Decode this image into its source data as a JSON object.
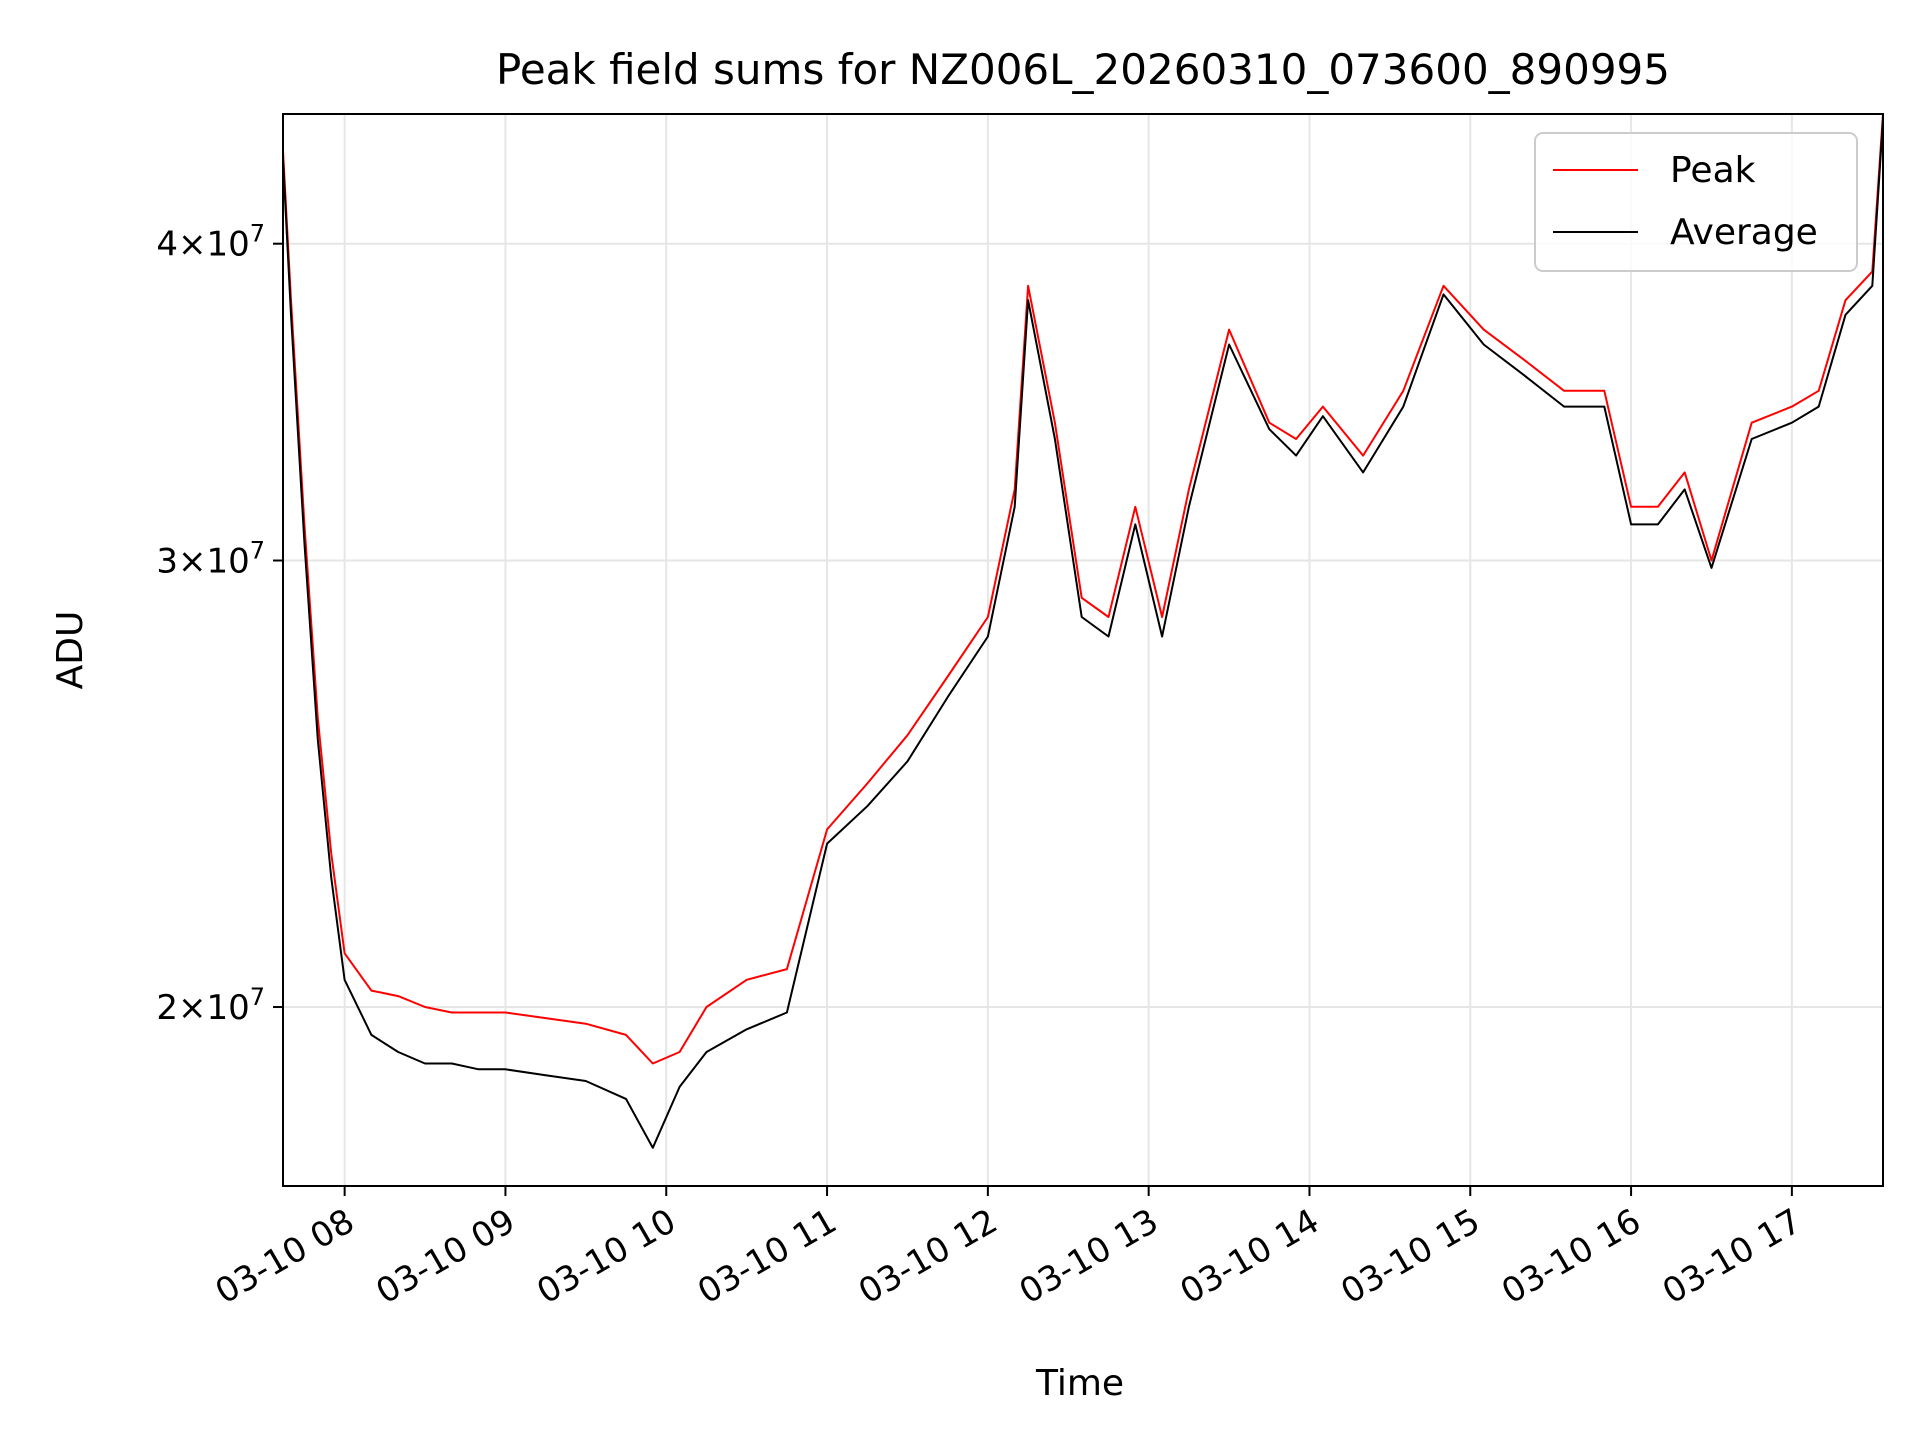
{
  "chart_data": {
    "type": "line",
    "title": "Peak field sums for NZ006L_20260310_073600_890995",
    "xlabel": "Time",
    "ylabel": "ADU",
    "y_scale": "log",
    "xlim": [
      "2026-03-10 07:37",
      "2026-03-10 17:34"
    ],
    "ylim": [
      17000000,
      45000000
    ],
    "x_ticks": [
      "03-10 08",
      "03-10 09",
      "03-10 10",
      "03-10 11",
      "03-10 12",
      "03-10 13",
      "03-10 14",
      "03-10 15",
      "03-10 16",
      "03-10 17"
    ],
    "y_ticks": [
      {
        "value": 20000000,
        "mantissa": "2",
        "exponent": "7"
      },
      {
        "value": 30000000,
        "mantissa": "3",
        "exponent": "7"
      },
      {
        "value": 40000000,
        "mantissa": "4",
        "exponent": "7"
      }
    ],
    "tick_times_text": "×10",
    "grid": true,
    "legend_position": "top-right",
    "series": [
      {
        "name": "Peak",
        "color": "#ff0000",
        "x": [
          "2026-03-10 07:37",
          "2026-03-10 07:40",
          "2026-03-10 07:45",
          "2026-03-10 07:50",
          "2026-03-10 07:55",
          "2026-03-10 08:00",
          "2026-03-10 08:10",
          "2026-03-10 08:20",
          "2026-03-10 08:30",
          "2026-03-10 08:40",
          "2026-03-10 08:50",
          "2026-03-10 09:00",
          "2026-03-10 09:15",
          "2026-03-10 09:30",
          "2026-03-10 09:45",
          "2026-03-10 09:55",
          "2026-03-10 10:05",
          "2026-03-10 10:15",
          "2026-03-10 10:30",
          "2026-03-10 10:45",
          "2026-03-10 11:00",
          "2026-03-10 11:15",
          "2026-03-10 11:30",
          "2026-03-10 11:45",
          "2026-03-10 12:00",
          "2026-03-10 12:10",
          "2026-03-10 12:15",
          "2026-03-10 12:25",
          "2026-03-10 12:35",
          "2026-03-10 12:45",
          "2026-03-10 12:55",
          "2026-03-10 13:05",
          "2026-03-10 13:15",
          "2026-03-10 13:30",
          "2026-03-10 13:45",
          "2026-03-10 13:55",
          "2026-03-10 14:05",
          "2026-03-10 14:20",
          "2026-03-10 14:35",
          "2026-03-10 14:50",
          "2026-03-10 15:05",
          "2026-03-10 15:20",
          "2026-03-10 15:35",
          "2026-03-10 15:50",
          "2026-03-10 16:00",
          "2026-03-10 16:10",
          "2026-03-10 16:20",
          "2026-03-10 16:30",
          "2026-03-10 16:45",
          "2026-03-10 17:00",
          "2026-03-10 17:10",
          "2026-03-10 17:20",
          "2026-03-10 17:30",
          "2026-03-10 17:34"
        ],
        "y": [
          43500000,
          38000000,
          31000000,
          26000000,
          23000000,
          21000000,
          20300000,
          20200000,
          20000000,
          19900000,
          19900000,
          19900000,
          19800000,
          19700000,
          19500000,
          19000000,
          19200000,
          20000000,
          20500000,
          20700000,
          23500000,
          24500000,
          25600000,
          27000000,
          28500000,
          32000000,
          38500000,
          34000000,
          29000000,
          28500000,
          31500000,
          28500000,
          32000000,
          37000000,
          34000000,
          33500000,
          34500000,
          33000000,
          35000000,
          38500000,
          37000000,
          36000000,
          35000000,
          35000000,
          31500000,
          31500000,
          32500000,
          30000000,
          34000000,
          34500000,
          35000000,
          38000000,
          39000000,
          45000000
        ]
      },
      {
        "name": "Average",
        "color": "#000000",
        "x": [
          "2026-03-10 07:37",
          "2026-03-10 07:40",
          "2026-03-10 07:45",
          "2026-03-10 07:50",
          "2026-03-10 07:55",
          "2026-03-10 08:00",
          "2026-03-10 08:10",
          "2026-03-10 08:20",
          "2026-03-10 08:30",
          "2026-03-10 08:40",
          "2026-03-10 08:50",
          "2026-03-10 09:00",
          "2026-03-10 09:15",
          "2026-03-10 09:30",
          "2026-03-10 09:45",
          "2026-03-10 09:55",
          "2026-03-10 10:05",
          "2026-03-10 10:15",
          "2026-03-10 10:30",
          "2026-03-10 10:45",
          "2026-03-10 11:00",
          "2026-03-10 11:15",
          "2026-03-10 11:30",
          "2026-03-10 11:45",
          "2026-03-10 12:00",
          "2026-03-10 12:10",
          "2026-03-10 12:15",
          "2026-03-10 12:25",
          "2026-03-10 12:35",
          "2026-03-10 12:45",
          "2026-03-10 12:55",
          "2026-03-10 13:05",
          "2026-03-10 13:15",
          "2026-03-10 13:30",
          "2026-03-10 13:45",
          "2026-03-10 13:55",
          "2026-03-10 14:05",
          "2026-03-10 14:20",
          "2026-03-10 14:35",
          "2026-03-10 14:50",
          "2026-03-10 15:05",
          "2026-03-10 15:20",
          "2026-03-10 15:35",
          "2026-03-10 15:50",
          "2026-03-10 16:00",
          "2026-03-10 16:10",
          "2026-03-10 16:20",
          "2026-03-10 16:30",
          "2026-03-10 16:45",
          "2026-03-10 17:00",
          "2026-03-10 17:10",
          "2026-03-10 17:20",
          "2026-03-10 17:30",
          "2026-03-10 17:34"
        ],
        "y": [
          43200000,
          37500000,
          30500000,
          25500000,
          22500000,
          20500000,
          19500000,
          19200000,
          19000000,
          19000000,
          18900000,
          18900000,
          18800000,
          18700000,
          18400000,
          17600000,
          18600000,
          19200000,
          19600000,
          19900000,
          23200000,
          24000000,
          25000000,
          26500000,
          28000000,
          31500000,
          38000000,
          33500000,
          28500000,
          28000000,
          31000000,
          28000000,
          31500000,
          36500000,
          33800000,
          33000000,
          34200000,
          32500000,
          34500000,
          38200000,
          36500000,
          35500000,
          34500000,
          34500000,
          31000000,
          31000000,
          32000000,
          29800000,
          33500000,
          34000000,
          34500000,
          37500000,
          38500000,
          44800000
        ]
      }
    ]
  }
}
